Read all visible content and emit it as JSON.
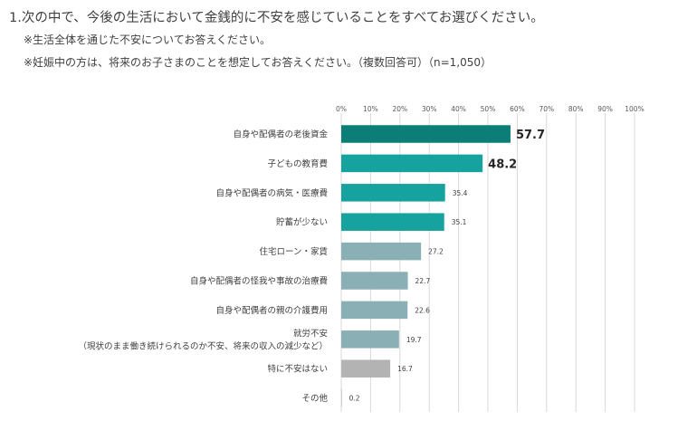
{
  "question": {
    "title": "1.次の中で、今後の生活において金銭的に不安を感じていることをすべてお選びください。",
    "note1": "※生活全体を通じた不安についてお答えください。",
    "note2": "※妊娠中の方は、将来のお子さまのことを想定してお答えください。（複数回答可）（n=1,050）"
  },
  "chart_data": {
    "type": "bar",
    "orientation": "horizontal",
    "title": "",
    "xlabel": "",
    "ylabel": "",
    "xlim": [
      0,
      100
    ],
    "x_ticks": [
      "0%",
      "10%",
      "20%",
      "30%",
      "40%",
      "50%",
      "60%",
      "70%",
      "80%",
      "90%",
      "100%"
    ],
    "grid": true,
    "categories": [
      [
        "自身や配偶者の老後資金"
      ],
      [
        "子どもの教育費"
      ],
      [
        "自身や配偶者の病気・医療費"
      ],
      [
        "貯蓄が少ない"
      ],
      [
        "住宅ローン・家賃"
      ],
      [
        "自身や配偶者の怪我や事故の治療費"
      ],
      [
        "自身や配偶者の親の介護費用"
      ],
      [
        "就労不安",
        "（現状のまま働き続けられるのか不安、将来の収入の減少など）"
      ],
      [
        "特に不安はない"
      ],
      [
        "その他"
      ]
    ],
    "values": [
      57.7,
      48.2,
      35.4,
      35.1,
      27.2,
      22.7,
      22.6,
      19.7,
      16.7,
      0.2
    ],
    "value_labels": [
      "57.7",
      "48.2",
      "35.4",
      "35.1",
      "27.2",
      "22.7",
      "22.6",
      "19.7",
      "16.7",
      "0.2"
    ],
    "emphasized_labels": [
      true,
      true,
      false,
      false,
      false,
      false,
      false,
      false,
      false,
      false
    ],
    "bar_colors": [
      "#0c7e78",
      "#16a3a0",
      "#16a3a0",
      "#16a3a0",
      "#8aafb5",
      "#8aafb5",
      "#8aafb5",
      "#8aafb5",
      "#b3b3b3",
      "#b3b3b3"
    ],
    "grid_color": "#d9d9d9"
  }
}
